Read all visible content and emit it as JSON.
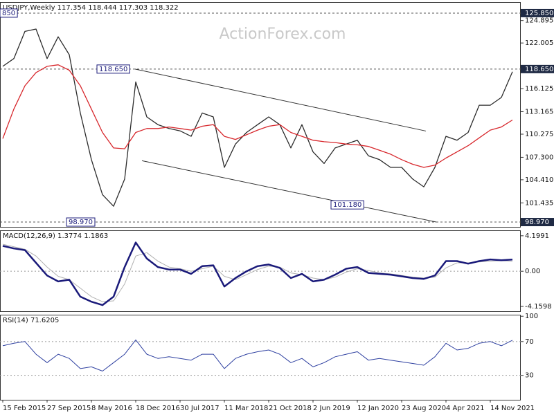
{
  "chart_data": [
    {
      "type": "line",
      "title": "USDJPY,Weekly  117.354 118.444 117.303 118.322",
      "watermark": "ActionForex.com",
      "x": [
        0,
        8,
        16,
        24,
        32,
        40,
        48,
        56,
        64,
        72,
        80,
        88,
        96,
        104,
        112,
        120,
        128,
        136,
        144,
        152,
        160,
        168,
        176,
        184,
        192,
        200,
        208,
        216,
        224,
        232,
        240,
        248,
        256,
        264,
        272,
        280,
        288,
        296,
        304,
        312,
        320,
        328,
        336,
        344,
        352,
        360,
        368
      ],
      "xlim": [
        0,
        374
      ],
      "series": [
        {
          "color": "#2b2b2b",
          "values": [
            119.0,
            120.0,
            123.5,
            123.8,
            120.0,
            122.8,
            120.5,
            113.0,
            107.0,
            102.5,
            101.0,
            104.5,
            117.0,
            112.5,
            111.5,
            111.0,
            110.7,
            110.0,
            113.0,
            112.5,
            106.0,
            109.0,
            110.5,
            111.5,
            112.5,
            111.5,
            108.5,
            111.5,
            108.0,
            106.5,
            108.5,
            109.0,
            109.5,
            107.5,
            107.0,
            106.0,
            106.0,
            104.5,
            103.5,
            106.0,
            110.0,
            109.5,
            110.5,
            114.0,
            114.0,
            115.0,
            118.3
          ]
        },
        {
          "color": "#d7262b",
          "values": [
            109.7,
            113.5,
            116.5,
            118.2,
            119.0,
            119.2,
            118.5,
            116.5,
            113.5,
            110.5,
            108.5,
            108.4,
            110.5,
            111.0,
            111.0,
            111.2,
            111.0,
            110.8,
            111.3,
            111.5,
            110.0,
            109.6,
            110.2,
            110.8,
            111.3,
            111.5,
            110.5,
            110.0,
            109.5,
            109.3,
            109.2,
            109.0,
            108.9,
            108.7,
            108.2,
            107.7,
            107.0,
            106.4,
            106.0,
            106.3,
            107.2,
            108.0,
            108.8,
            109.8,
            110.8,
            111.2,
            112.1
          ]
        }
      ],
      "trendlines": [
        {
          "color": "#333333",
          "x": [
            95.5,
            305.5
          ],
          "values": [
            118.65,
            110.68
          ]
        },
        {
          "color": "#333333",
          "x": [
            100.5,
            313
          ],
          "values": [
            106.86,
            98.97
          ]
        }
      ],
      "hlines": [
        {
          "value": 125.85,
          "label": "125.850"
        },
        {
          "value": 118.65,
          "label": "118.650"
        },
        {
          "value": 98.97,
          "label": "98.970"
        }
      ],
      "annotations": [
        {
          "value": 125.85,
          "label": "850"
        },
        {
          "value": 118.65,
          "label": "118.650"
        },
        {
          "value": 101.18,
          "label": "101.180"
        },
        {
          "value": 98.97,
          "label": "98.970"
        }
      ],
      "ylim": [
        98.35,
        127.18
      ],
      "yticks": [
        101.435,
        {
          "value": 104.41,
          "label": "104.410"
        },
        {
          "value": 107.3,
          "label": "107.300"
        },
        {
          "value": 110.275,
          "label": "110.275"
        },
        113.165,
        116.125,
        122.005,
        124.895
      ]
    },
    {
      "type": "line",
      "title": "MACD(12,26,9) 1.3774 1.1863",
      "x": [
        0,
        8,
        16,
        24,
        32,
        40,
        48,
        56,
        64,
        72,
        80,
        88,
        96,
        104,
        112,
        120,
        128,
        136,
        144,
        152,
        160,
        168,
        176,
        184,
        192,
        200,
        208,
        216,
        224,
        232,
        240,
        248,
        256,
        264,
        272,
        280,
        288,
        296,
        304,
        312,
        320,
        328,
        336,
        344,
        352,
        360,
        368
      ],
      "xlim": [
        0,
        374
      ],
      "series": [
        {
          "color": "#b0b0b0",
          "width": 1,
          "values": [
            3.2,
            2.9,
            2.6,
            1.8,
            0.5,
            -0.6,
            -1.0,
            -2.0,
            -3.0,
            -3.6,
            -3.5,
            -1.5,
            1.8,
            2.2,
            1.2,
            0.5,
            0.3,
            0.0,
            0.3,
            0.6,
            -0.6,
            -1.0,
            -0.4,
            0.2,
            0.6,
            0.5,
            -0.2,
            -0.4,
            -0.8,
            -1.0,
            -0.7,
            -0.1,
            0.3,
            0.1,
            -0.2,
            -0.3,
            -0.5,
            -0.7,
            -0.8,
            -0.7,
            0.4,
            1.0,
            1.0,
            1.1,
            1.2,
            1.25,
            1.19
          ]
        },
        {
          "color": "#1a1a7a",
          "width": 2.5,
          "values": [
            3.0,
            2.7,
            2.5,
            1.0,
            -0.5,
            -1.2,
            -1.0,
            -3.0,
            -3.6,
            -4.0,
            -3.0,
            0.5,
            3.4,
            1.5,
            0.5,
            0.2,
            0.2,
            -0.3,
            0.6,
            0.7,
            -1.8,
            -0.8,
            0.0,
            0.6,
            0.8,
            0.4,
            -0.8,
            -0.3,
            -1.2,
            -1.0,
            -0.4,
            0.3,
            0.5,
            -0.2,
            -0.3,
            -0.4,
            -0.6,
            -0.8,
            -0.9,
            -0.5,
            1.2,
            1.2,
            0.9,
            1.2,
            1.4,
            1.3,
            1.38
          ]
        }
      ],
      "ylim": [
        -4.73,
        4.76
      ],
      "yticks": [
        4.1991,
        {
          "value": 0,
          "label": "0.00"
        },
        -4.1598
      ],
      "grid_values": [
        0
      ]
    },
    {
      "type": "line",
      "title": "RSI(14) 71.6205",
      "x": [
        0,
        8,
        16,
        24,
        32,
        40,
        48,
        56,
        64,
        72,
        80,
        88,
        96,
        104,
        112,
        120,
        128,
        136,
        144,
        152,
        160,
        168,
        176,
        184,
        192,
        200,
        208,
        216,
        224,
        232,
        240,
        248,
        256,
        264,
        272,
        280,
        288,
        296,
        304,
        312,
        320,
        328,
        336,
        344,
        352,
        360,
        368
      ],
      "xlim": [
        0,
        374
      ],
      "series": [
        {
          "color": "#2d3fa0",
          "width": 1,
          "values": [
            65,
            68,
            70,
            55,
            45,
            55,
            50,
            38,
            40,
            35,
            45,
            55,
            72,
            55,
            50,
            52,
            50,
            48,
            55,
            55,
            38,
            50,
            55,
            58,
            60,
            55,
            45,
            50,
            40,
            45,
            52,
            55,
            58,
            48,
            50,
            48,
            46,
            44,
            42,
            52,
            68,
            60,
            62,
            68,
            70,
            65,
            71.6
          ]
        }
      ],
      "ylim": [
        1,
        101
      ],
      "yticks": [
        30,
        70,
        100
      ],
      "grid_values": [
        30,
        70
      ],
      "xticks": [
        {
          "value": 0,
          "label": "15 Feb 2015"
        },
        {
          "value": 32,
          "label": "27 Sep 2015"
        },
        {
          "value": 64,
          "label": "8 May 2016"
        },
        {
          "value": 96,
          "label": "18 Dec 2016"
        },
        {
          "value": 128,
          "label": "30 Jul 2017"
        },
        {
          "value": 160,
          "label": "11 Mar 2018"
        },
        {
          "value": 192,
          "label": "21 Oct 2018"
        },
        {
          "value": 224,
          "label": "2 Jun 2019"
        },
        {
          "value": 256,
          "label": "12 Jan 2020"
        },
        {
          "value": 288,
          "label": "23 Aug 2020"
        },
        {
          "value": 320,
          "label": "4 Apr 2021"
        },
        {
          "value": 352,
          "label": "14 Nov 2021"
        }
      ]
    }
  ]
}
